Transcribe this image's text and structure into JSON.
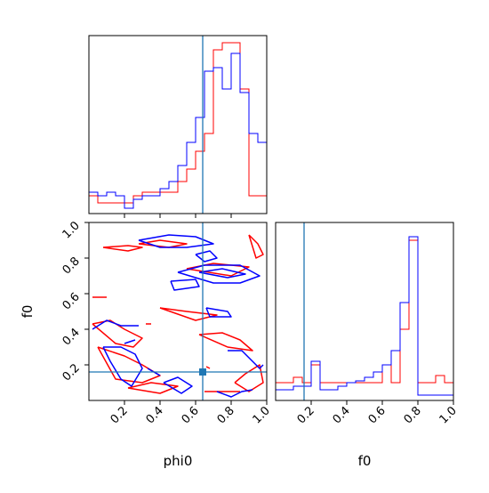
{
  "chart_data": [
    {
      "panel": "phi0-marginal",
      "type": "histogram",
      "xlim": [
        0,
        1
      ],
      "truth_x": 0.64,
      "bins": 20,
      "series": [
        {
          "color": "#ff0000",
          "values": [
            0.1,
            0.06,
            0.06,
            0.06,
            0.06,
            0.1,
            0.12,
            0.12,
            0.12,
            0.12,
            0.18,
            0.25,
            0.35,
            0.45,
            0.92,
            0.96,
            0.96,
            0.7,
            0.1,
            0.1
          ]
        },
        {
          "color": "#0000ff",
          "values": [
            0.12,
            0.1,
            0.12,
            0.1,
            0.03,
            0.08,
            0.1,
            0.1,
            0.14,
            0.18,
            0.27,
            0.4,
            0.54,
            0.8,
            0.82,
            0.7,
            0.9,
            0.68,
            0.45,
            0.4
          ]
        }
      ]
    },
    {
      "panel": "f0-marginal",
      "type": "histogram",
      "xlim": [
        0,
        1
      ],
      "truth_x": 0.16,
      "bins": 20,
      "series": [
        {
          "color": "#ff0000",
          "values": [
            0.1,
            0.1,
            0.13,
            0.1,
            0.2,
            0.1,
            0.1,
            0.1,
            0.1,
            0.1,
            0.1,
            0.1,
            0.2,
            0.1,
            0.4,
            0.9,
            0.1,
            0.1,
            0.14,
            0.1
          ]
        },
        {
          "color": "#0000ff",
          "values": [
            0.06,
            0.06,
            0.08,
            0.08,
            0.22,
            0.06,
            0.06,
            0.08,
            0.1,
            0.11,
            0.13,
            0.16,
            0.2,
            0.28,
            0.55,
            0.92,
            0.03,
            0.03,
            0.03,
            0.03
          ]
        }
      ]
    },
    {
      "panel": "phi0-f0-joint",
      "type": "contour",
      "xlim": [
        0,
        1
      ],
      "ylim": [
        0,
        1
      ],
      "truth": {
        "x": 0.64,
        "y": 0.16
      },
      "xlabel": "phi0",
      "ylabel": "f0",
      "series": [
        {
          "color": "#ff0000",
          "contours": [
            [
              [
                0.08,
                0.86
              ],
              [
                0.22,
                0.87
              ],
              [
                0.3,
                0.86
              ],
              [
                0.22,
                0.84
              ],
              [
                0.08,
                0.86
              ]
            ],
            [
              [
                0.28,
                0.88
              ],
              [
                0.4,
                0.9
              ],
              [
                0.55,
                0.88
              ],
              [
                0.45,
                0.86
              ],
              [
                0.28,
                0.88
              ]
            ],
            [
              [
                0.55,
                0.74
              ],
              [
                0.7,
                0.77
              ],
              [
                0.9,
                0.75
              ],
              [
                0.8,
                0.7
              ],
              [
                0.55,
                0.74
              ]
            ],
            [
              [
                0.02,
                0.58
              ],
              [
                0.1,
                0.58
              ]
            ],
            [
              [
                0.4,
                0.52
              ],
              [
                0.55,
                0.5
              ],
              [
                0.72,
                0.48
              ],
              [
                0.6,
                0.45
              ],
              [
                0.4,
                0.52
              ]
            ],
            [
              [
                0.02,
                0.43
              ],
              [
                0.12,
                0.45
              ],
              [
                0.2,
                0.4
              ],
              [
                0.3,
                0.35
              ],
              [
                0.25,
                0.3
              ],
              [
                0.15,
                0.32
              ],
              [
                0.02,
                0.43
              ]
            ],
            [
              [
                0.32,
                0.43
              ],
              [
                0.35,
                0.43
              ]
            ],
            [
              [
                0.62,
                0.37
              ],
              [
                0.75,
                0.38
              ],
              [
                0.85,
                0.34
              ],
              [
                0.92,
                0.28
              ],
              [
                0.78,
                0.3
              ],
              [
                0.62,
                0.37
              ]
            ],
            [
              [
                0.05,
                0.3
              ],
              [
                0.2,
                0.25
              ],
              [
                0.3,
                0.2
              ],
              [
                0.4,
                0.14
              ],
              [
                0.3,
                0.1
              ],
              [
                0.15,
                0.12
              ],
              [
                0.05,
                0.3
              ]
            ],
            [
              [
                0.22,
                0.07
              ],
              [
                0.35,
                0.1
              ],
              [
                0.5,
                0.08
              ],
              [
                0.4,
                0.04
              ],
              [
                0.22,
                0.07
              ]
            ],
            [
              [
                0.66,
                0.19
              ],
              [
                0.68,
                0.18
              ]
            ],
            [
              [
                0.82,
                0.1
              ],
              [
                0.9,
                0.05
              ],
              [
                0.98,
                0.1
              ],
              [
                0.96,
                0.2
              ],
              [
                0.88,
                0.15
              ],
              [
                0.82,
                0.1
              ]
            ],
            [
              [
                0.65,
                0.05
              ],
              [
                0.85,
                0.05
              ]
            ],
            [
              [
                0.9,
                0.93
              ],
              [
                0.95,
                0.88
              ],
              [
                0.98,
                0.82
              ],
              [
                0.94,
                0.8
              ],
              [
                0.9,
                0.93
              ]
            ]
          ]
        },
        {
          "color": "#0000ff",
          "contours": [
            [
              [
                0.28,
                0.9
              ],
              [
                0.45,
                0.93
              ],
              [
                0.6,
                0.92
              ],
              [
                0.7,
                0.88
              ],
              [
                0.55,
                0.86
              ],
              [
                0.4,
                0.86
              ],
              [
                0.28,
                0.9
              ]
            ],
            [
              [
                0.5,
                0.72
              ],
              [
                0.65,
                0.76
              ],
              [
                0.85,
                0.76
              ],
              [
                0.96,
                0.7
              ],
              [
                0.85,
                0.66
              ],
              [
                0.7,
                0.66
              ],
              [
                0.5,
                0.72
              ]
            ],
            [
              [
                0.62,
                0.72
              ],
              [
                0.75,
                0.74
              ],
              [
                0.88,
                0.71
              ],
              [
                0.78,
                0.69
              ],
              [
                0.62,
                0.72
              ]
            ],
            [
              [
                0.6,
                0.82
              ],
              [
                0.68,
                0.84
              ],
              [
                0.72,
                0.8
              ],
              [
                0.65,
                0.78
              ],
              [
                0.6,
                0.82
              ]
            ],
            [
              [
                0.46,
                0.67
              ],
              [
                0.6,
                0.68
              ],
              [
                0.62,
                0.64
              ],
              [
                0.48,
                0.62
              ],
              [
                0.46,
                0.67
              ]
            ],
            [
              [
                0.66,
                0.52
              ],
              [
                0.78,
                0.5
              ],
              [
                0.8,
                0.47
              ],
              [
                0.68,
                0.47
              ],
              [
                0.66,
                0.52
              ]
            ],
            [
              [
                0.02,
                0.4
              ],
              [
                0.1,
                0.45
              ],
              [
                0.18,
                0.42
              ],
              [
                0.28,
                0.42
              ]
            ],
            [
              [
                0.08,
                0.3
              ],
              [
                0.12,
                0.22
              ],
              [
                0.18,
                0.12
              ],
              [
                0.24,
                0.08
              ],
              [
                0.3,
                0.18
              ],
              [
                0.26,
                0.26
              ],
              [
                0.18,
                0.3
              ],
              [
                0.08,
                0.3
              ]
            ],
            [
              [
                0.2,
                0.32
              ],
              [
                0.26,
                0.34
              ]
            ],
            [
              [
                0.33,
                0.18
              ],
              [
                0.4,
                0.14
              ]
            ],
            [
              [
                0.42,
                0.1
              ],
              [
                0.5,
                0.13
              ],
              [
                0.58,
                0.08
              ],
              [
                0.52,
                0.04
              ],
              [
                0.42,
                0.1
              ]
            ],
            [
              [
                0.72,
                0.05
              ],
              [
                0.8,
                0.02
              ],
              [
                0.86,
                0.05
              ],
              [
                0.92,
                0.06
              ]
            ],
            [
              [
                0.78,
                0.28
              ],
              [
                0.86,
                0.28
              ],
              [
                0.92,
                0.22
              ],
              [
                0.96,
                0.18
              ],
              [
                0.98,
                0.2
              ]
            ]
          ]
        }
      ]
    }
  ],
  "ticks": {
    "top_x": [
      "",
      "",
      "",
      ""
    ],
    "joint_x": [
      "0.2",
      "0.4",
      "0.6",
      "0.8",
      "1.0"
    ],
    "joint_y": [
      "0.2",
      "0.4",
      "0.6",
      "0.8",
      "1.0"
    ],
    "f0_x": [
      "0.2",
      "0.4",
      "0.6",
      "0.8",
      "1.0"
    ]
  },
  "labels": {
    "joint_xlabel": "phi0",
    "joint_ylabel": "f0",
    "f0_xlabel": "f0"
  },
  "colors": {
    "run_a": "#ff0000",
    "run_b": "#0000ff",
    "truth": "#1f77b4"
  }
}
